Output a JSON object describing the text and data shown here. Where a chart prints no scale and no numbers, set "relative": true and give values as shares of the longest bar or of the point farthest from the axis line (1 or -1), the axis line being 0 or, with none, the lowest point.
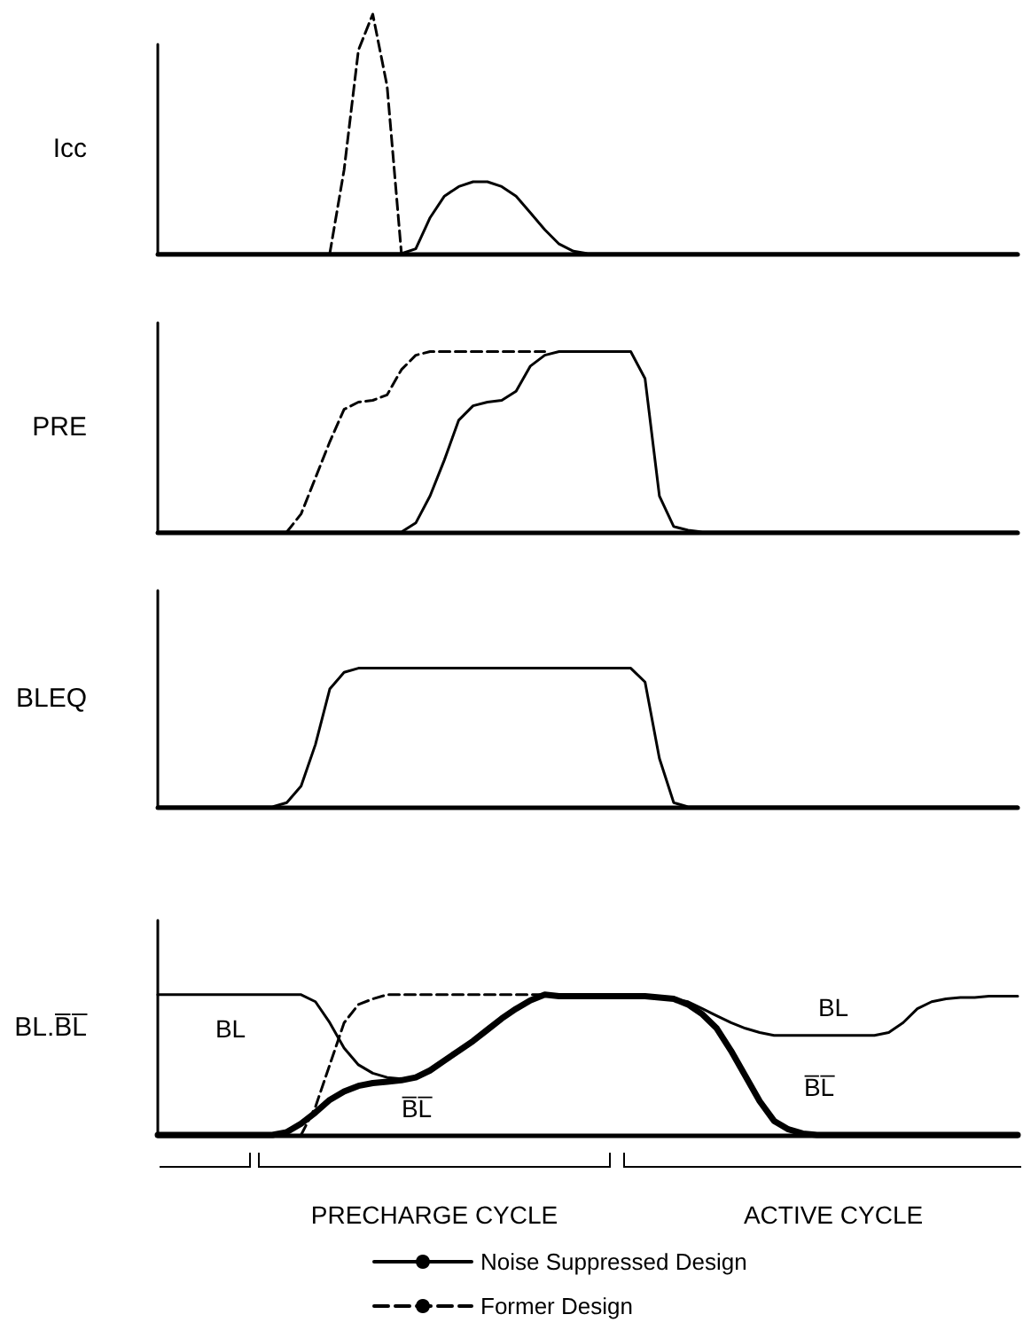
{
  "chart_data": [
    {
      "type": "line",
      "relative": true,
      "ylabel": "Icc",
      "grid": false,
      "legend": false,
      "categories": [
        null,
        null,
        null,
        null,
        null,
        null,
        null,
        null,
        null,
        null,
        null,
        null,
        null,
        null,
        null,
        null,
        null,
        null,
        null,
        null,
        null,
        null,
        null,
        null,
        null,
        null,
        null,
        null,
        null,
        null,
        null,
        null,
        null,
        null,
        null,
        null,
        null,
        null,
        null,
        null,
        null,
        null,
        null,
        null,
        null,
        null,
        null,
        null,
        null,
        null,
        null,
        null,
        null,
        null,
        null,
        null,
        null,
        null,
        null,
        null,
        null
      ],
      "series": [
        {
          "color": "#000000",
          "line_style": "dashed",
          "values": [
            null,
            null,
            null,
            null,
            null,
            null,
            null,
            null,
            null,
            null,
            null,
            null,
            0,
            0.35,
            0.85,
            1,
            0.7,
            0,
            null,
            null,
            null,
            null,
            null,
            null,
            null,
            null,
            null,
            null,
            null,
            null,
            null,
            null,
            null,
            null,
            null,
            null,
            null,
            null,
            null,
            null,
            null,
            null,
            null,
            null,
            null,
            null,
            null,
            null,
            null,
            null,
            null,
            null,
            null,
            null,
            null,
            null,
            null,
            null,
            null,
            null,
            null
          ]
        },
        {
          "color": "#000000",
          "line_style": "solid",
          "values": [
            0,
            0,
            0,
            0,
            0,
            0,
            0,
            0,
            0,
            0,
            0,
            0,
            0,
            0,
            0,
            0,
            0,
            0,
            0.02,
            0.15,
            0.24,
            0.28,
            0.3,
            0.3,
            0.28,
            0.24,
            0.17,
            0.1,
            0.04,
            0.01,
            0,
            0,
            0,
            0,
            0,
            0,
            0,
            0,
            0,
            0,
            0,
            0,
            0,
            0,
            0,
            0,
            0,
            0,
            0,
            0,
            0,
            0,
            0,
            0,
            0,
            0,
            0,
            0,
            0,
            0,
            0
          ]
        }
      ]
    },
    {
      "type": "line",
      "relative": true,
      "ylabel": "PRE",
      "grid": false,
      "legend": false,
      "categories": [
        null,
        null,
        null,
        null,
        null,
        null,
        null,
        null,
        null,
        null,
        null,
        null,
        null,
        null,
        null,
        null,
        null,
        null,
        null,
        null,
        null,
        null,
        null,
        null,
        null,
        null,
        null,
        null,
        null,
        null,
        null,
        null,
        null,
        null,
        null,
        null,
        null,
        null,
        null,
        null,
        null,
        null,
        null,
        null,
        null,
        null,
        null,
        null,
        null,
        null,
        null,
        null,
        null,
        null,
        null,
        null,
        null,
        null,
        null,
        null,
        null
      ],
      "series": [
        {
          "color": "#000000",
          "line_style": "dashed",
          "values": [
            null,
            null,
            null,
            null,
            null,
            null,
            null,
            null,
            null,
            0,
            0.1,
            0.3,
            0.5,
            0.68,
            0.72,
            0.73,
            0.76,
            0.9,
            0.98,
            1,
            1,
            1,
            1,
            1,
            1,
            1,
            1,
            1,
            null,
            null,
            null,
            null,
            null,
            null,
            null,
            null,
            null,
            null,
            null,
            null,
            null,
            null,
            null,
            null,
            null,
            null,
            null,
            null,
            null,
            null,
            null,
            null,
            null,
            null,
            null,
            null,
            null,
            null,
            null,
            null,
            null
          ]
        },
        {
          "color": "#000000",
          "line_style": "solid",
          "values": [
            0,
            0,
            0,
            0,
            0,
            0,
            0,
            0,
            0,
            0,
            0,
            0,
            0,
            0,
            0,
            0,
            0,
            0,
            0.05,
            0.2,
            0.4,
            0.62,
            0.7,
            0.72,
            0.73,
            0.78,
            0.92,
            0.98,
            1,
            1,
            1,
            1,
            1,
            1,
            0.85,
            0.2,
            0.03,
            0.01,
            0,
            0,
            0,
            0,
            0,
            0,
            0,
            0,
            0,
            0,
            0,
            0,
            0,
            0,
            0,
            0,
            0,
            0,
            0,
            0,
            0,
            0,
            0
          ]
        }
      ]
    },
    {
      "type": "line",
      "relative": true,
      "ylabel": "BLEQ",
      "grid": false,
      "legend": false,
      "categories": [
        null,
        null,
        null,
        null,
        null,
        null,
        null,
        null,
        null,
        null,
        null,
        null,
        null,
        null,
        null,
        null,
        null,
        null,
        null,
        null,
        null,
        null,
        null,
        null,
        null,
        null,
        null,
        null,
        null,
        null,
        null,
        null,
        null,
        null,
        null,
        null,
        null,
        null,
        null,
        null,
        null,
        null,
        null,
        null,
        null,
        null,
        null,
        null,
        null,
        null,
        null,
        null,
        null,
        null,
        null,
        null,
        null,
        null,
        null,
        null,
        null
      ],
      "series": [
        {
          "color": "#000000",
          "line_style": "solid",
          "values": [
            0,
            0,
            0,
            0,
            0,
            0,
            0,
            0,
            0,
            0.03,
            0.15,
            0.45,
            0.85,
            0.97,
            1,
            1,
            1,
            1,
            1,
            1,
            1,
            1,
            1,
            1,
            1,
            1,
            1,
            1,
            1,
            1,
            1,
            1,
            1,
            1,
            0.9,
            0.35,
            0.03,
            0,
            0,
            0,
            0,
            0,
            0,
            0,
            0,
            0,
            0,
            0,
            0,
            0,
            0,
            0,
            0,
            0,
            0,
            0,
            0,
            0,
            0,
            0,
            0
          ]
        }
      ]
    },
    {
      "type": "line",
      "relative": true,
      "ylabel": "BL.B̅L̅",
      "grid": false,
      "legend": "bottom",
      "annotations": [
        "BL",
        "B̅L̅",
        "BL",
        "B̅L̅",
        "PRECHARGE CYCLE",
        "ACTIVE CYCLE"
      ],
      "categories": [
        null,
        null,
        null,
        null,
        null,
        null,
        null,
        null,
        null,
        null,
        null,
        null,
        null,
        null,
        null,
        null,
        null,
        null,
        null,
        null,
        null,
        null,
        null,
        null,
        null,
        null,
        null,
        null,
        null,
        null,
        null,
        null,
        null,
        null,
        null,
        null,
        null,
        null,
        null,
        null,
        null,
        null,
        null,
        null,
        null,
        null,
        null,
        null,
        null,
        null,
        null,
        null,
        null,
        null,
        null,
        null,
        null,
        null,
        null,
        null,
        null
      ],
      "series": [
        {
          "color": "#000000",
          "line_style": "solid",
          "values": [
            1,
            1,
            1,
            1,
            1,
            1,
            1,
            1,
            1,
            1,
            1,
            0.95,
            0.8,
            0.62,
            0.5,
            0.44,
            0.41,
            0.4,
            0.41,
            0.46,
            0.53,
            0.6,
            0.67,
            0.75,
            0.83,
            0.9,
            0.96,
            1,
            0.99,
            0.99,
            0.99,
            0.99,
            0.99,
            0.99,
            0.99,
            0.98,
            0.97,
            0.95,
            0.9,
            0.85,
            0.8,
            0.76,
            0.73,
            0.71,
            0.71,
            0.71,
            0.71,
            0.71,
            0.71,
            0.71,
            0.71,
            0.73,
            0.8,
            0.9,
            0.95,
            0.97,
            0.98,
            0.98,
            0.99,
            0.99,
            0.99
          ]
        },
        {
          "name": "Noise Suppressed Design",
          "color": "#000000",
          "line_style": "solid",
          "values": [
            0,
            0,
            0,
            0,
            0,
            0,
            0,
            0,
            0,
            0.02,
            0.08,
            0.16,
            0.25,
            0.31,
            0.35,
            0.37,
            0.38,
            0.39,
            0.41,
            0.46,
            0.53,
            0.6,
            0.67,
            0.75,
            0.83,
            0.9,
            0.96,
            1,
            0.99,
            0.99,
            0.99,
            0.99,
            0.99,
            0.99,
            0.99,
            0.98,
            0.97,
            0.93,
            0.86,
            0.76,
            0.6,
            0.42,
            0.24,
            0.1,
            0.04,
            0.01,
            0,
            0,
            0,
            0,
            0,
            0,
            0,
            0,
            0,
            0,
            0,
            0,
            0,
            0,
            0
          ]
        },
        {
          "name": "Former Design",
          "color": "#000000",
          "line_style": "dashed",
          "values": [
            null,
            null,
            null,
            null,
            null,
            null,
            null,
            null,
            null,
            null,
            0,
            0.2,
            0.5,
            0.8,
            0.93,
            0.97,
            1,
            1,
            1,
            1,
            1,
            1,
            1,
            1,
            1,
            1,
            1,
            1,
            null,
            null,
            null,
            null,
            null,
            null,
            null,
            null,
            null,
            null,
            null,
            null,
            null,
            null,
            null,
            null,
            null,
            null,
            null,
            null,
            null,
            null,
            null,
            null,
            null,
            null,
            null,
            null,
            null,
            null,
            null,
            null,
            null
          ]
        }
      ]
    }
  ]
}
